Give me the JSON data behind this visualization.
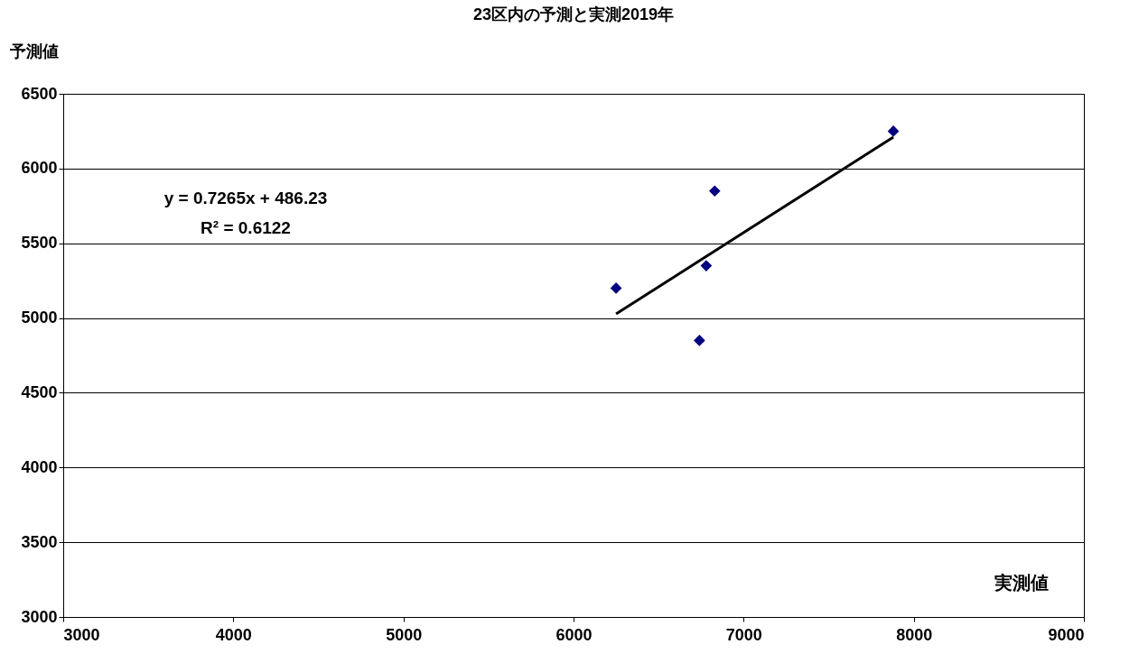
{
  "chart_data": {
    "type": "scatter",
    "title": "23区内の予測と実測2019年",
    "xlabel": "実測値",
    "ylabel": "予測値",
    "xlim": [
      3000,
      9000
    ],
    "xticks": [
      3000,
      4000,
      5000,
      6000,
      7000,
      8000,
      9000
    ],
    "ylim": [
      3000,
      6500
    ],
    "yticks": [
      3000,
      3500,
      4000,
      4500,
      5000,
      5500,
      6000,
      6500
    ],
    "grid": "y",
    "legend": false,
    "marker": "diamond",
    "series": [
      {
        "type": "scatter",
        "color": "#000080",
        "x": [
          6250,
          6740,
          6780,
          6830,
          7880
        ],
        "values": [
          5200,
          4850,
          5350,
          5850,
          6250
        ]
      },
      {
        "type": "line",
        "color": "#000000",
        "marker": "none",
        "line_style": "solid",
        "x": [
          6250,
          7880
        ],
        "values": [
          5027,
          6211
        ]
      }
    ],
    "annotations": [
      "y = 0.7265x + 486.23",
      "R² = 0.6122"
    ]
  }
}
